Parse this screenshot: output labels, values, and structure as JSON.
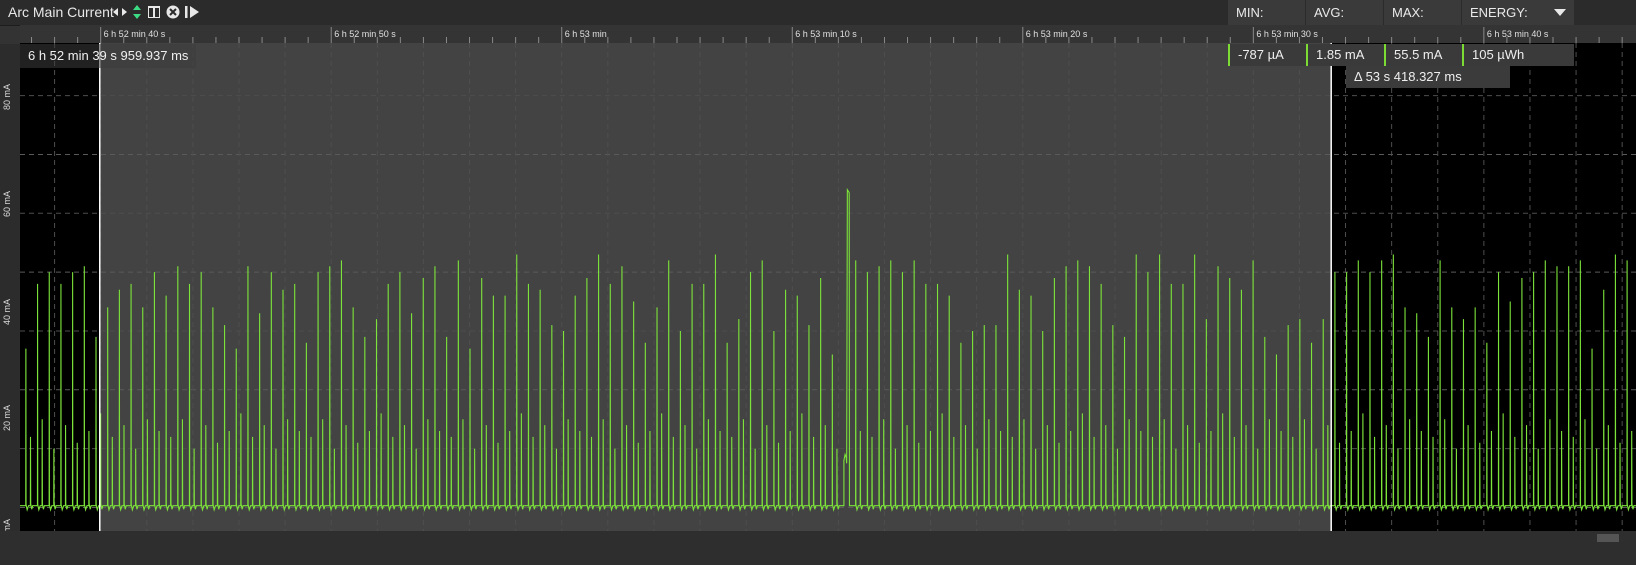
{
  "header": {
    "title": "Arc Main Current",
    "tools": [
      "pan-arrows-icon",
      "vertical-arrows-icon",
      "columns-icon",
      "close-circle-icon",
      "play-skip-icon"
    ]
  },
  "stats": {
    "min_label": "MIN:",
    "avg_label": "AVG:",
    "max_label": "MAX:",
    "energy_label": "ENERGY:",
    "min_value": "-787 µA",
    "avg_value": "1.85 mA",
    "max_value": "55.5 mA",
    "energy_value": "105 µWh"
  },
  "selection": {
    "start_time": "6 h 52 min 39 s 959.937 ms",
    "delta": "Δ 53 s 418.327 ms"
  },
  "colors": {
    "trace": "#7CE33A",
    "plot_bg": "#434343",
    "outside_selection": "#000000"
  },
  "chart_data": {
    "type": "line",
    "series": [
      {
        "name": "",
        "description_values_mA": "periodic current pulses, baseline ~0 mA, typical peaks 30-45 mA, two peaks ~54 mA"
      }
    ],
    "x_ticks": [
      "6 h 52 min 40 s",
      "6 h 52 min 50 s",
      "6 h 53 min",
      "6 h 53 min 10 s",
      "6 h 53 min 20 s",
      "6 h 53 min 30 s",
      "6 h 53 min 40 s"
    ],
    "y_ticks": [
      "0 mA",
      "20 mA",
      "40 mA",
      "60 mA",
      "80 mA"
    ],
    "ylim": [
      -4,
      82
    ],
    "x_start_s": 36.5,
    "x_end_s": 106.6,
    "selection_start_s": 39.96,
    "selection_end_s": 93.378,
    "pulse_period_s": 0.507,
    "pulse_peaks_mA": [
      27,
      38,
      40,
      38,
      40,
      41,
      29,
      34,
      37,
      38,
      34,
      40,
      36,
      41,
      38,
      40,
      34,
      31,
      27,
      41,
      33,
      40,
      37,
      38,
      28,
      40,
      41,
      42,
      34,
      29,
      32,
      38,
      40,
      33,
      39,
      41,
      29,
      42,
      27,
      39,
      36,
      36,
      43,
      38,
      37,
      31,
      30,
      36,
      39,
      43,
      38,
      41,
      35,
      28,
      34,
      42,
      30,
      38,
      38,
      43,
      28,
      32,
      40,
      42,
      30,
      37,
      36,
      31,
      39,
      26,
      54,
      42,
      40,
      41,
      42,
      40,
      42,
      38,
      38,
      36,
      28,
      30,
      31,
      31,
      43,
      37,
      36,
      30,
      39,
      41,
      42,
      41,
      38,
      31,
      29,
      43,
      40,
      43,
      38,
      38,
      43,
      32,
      41,
      39,
      37,
      42,
      29,
      26,
      31,
      32,
      28,
      32,
      40,
      40,
      42,
      40,
      42,
      43,
      34,
      33,
      29,
      42,
      34,
      32,
      34,
      28,
      40,
      35,
      39,
      40,
      42,
      41,
      41,
      42,
      27,
      37,
      43,
      42,
      31,
      32,
      30,
      39,
      33,
      41,
      43,
      28,
      39,
      32,
      41,
      43,
      40,
      37,
      31,
      30,
      32,
      38,
      39,
      43,
      31,
      37,
      43,
      42,
      33,
      40,
      38,
      37,
      30,
      29,
      32,
      31,
      37,
      34,
      32,
      35,
      28,
      43,
      32,
      43,
      42,
      33,
      34,
      38,
      39,
      42,
      33,
      41,
      43,
      36,
      28,
      35,
      34,
      29,
      38,
      42,
      40,
      41,
      37,
      42,
      26,
      34,
      30,
      31,
      32,
      29,
      34,
      43,
      54,
      42,
      29,
      28,
      38,
      40,
      32,
      41,
      43,
      35,
      36,
      33,
      42,
      38,
      27,
      41,
      38,
      31,
      37,
      40,
      43,
      28,
      42,
      39,
      36,
      43,
      38,
      31,
      41,
      37,
      42,
      39,
      43,
      40,
      41,
      36,
      29,
      33,
      40,
      37,
      43,
      31,
      40,
      38,
      34,
      42,
      37,
      36,
      41,
      32,
      33,
      38,
      37,
      35,
      40,
      33,
      42,
      38,
      34,
      41,
      39,
      36
    ],
    "secondary_peaks_mA": [
      12,
      15,
      10,
      14,
      11,
      13,
      16,
      12,
      14,
      10,
      15,
      13
    ],
    "marker_times_s": [
      39.96,
      93.378
    ]
  }
}
